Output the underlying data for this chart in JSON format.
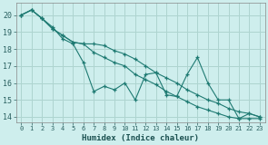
{
  "xlabel": "Humidex (Indice chaleur)",
  "background_color": "#ceeeed",
  "grid_color": "#aed4d0",
  "line_color": "#1e7a72",
  "xlim": [
    -0.5,
    23.5
  ],
  "ylim": [
    13.7,
    20.7
  ],
  "yticks": [
    14,
    15,
    16,
    17,
    18,
    19,
    20
  ],
  "xticks": [
    0,
    1,
    2,
    3,
    4,
    5,
    6,
    7,
    8,
    9,
    10,
    11,
    12,
    13,
    14,
    15,
    16,
    17,
    18,
    19,
    20,
    21,
    22,
    23
  ],
  "series": [
    [
      20.0,
      20.3,
      19.8,
      19.3,
      18.6,
      18.3,
      17.2,
      15.5,
      15.8,
      15.6,
      16.0,
      15.0,
      16.5,
      16.6,
      15.3,
      15.2,
      16.5,
      17.5,
      16.0,
      15.0,
      15.0,
      13.9,
      14.2,
      14.0
    ],
    [
      20.0,
      20.3,
      19.8,
      19.2,
      18.8,
      18.4,
      18.3,
      17.8,
      17.5,
      17.2,
      17.0,
      16.5,
      16.2,
      15.9,
      15.5,
      15.2,
      14.9,
      14.6,
      14.4,
      14.2,
      14.0,
      13.9,
      13.9,
      13.9
    ],
    [
      20.0,
      20.3,
      19.8,
      19.2,
      18.8,
      18.4,
      18.3,
      18.3,
      18.2,
      17.9,
      17.7,
      17.4,
      17.0,
      16.6,
      16.3,
      16.0,
      15.6,
      15.3,
      15.0,
      14.8,
      14.5,
      14.3,
      14.2,
      14.0
    ]
  ]
}
